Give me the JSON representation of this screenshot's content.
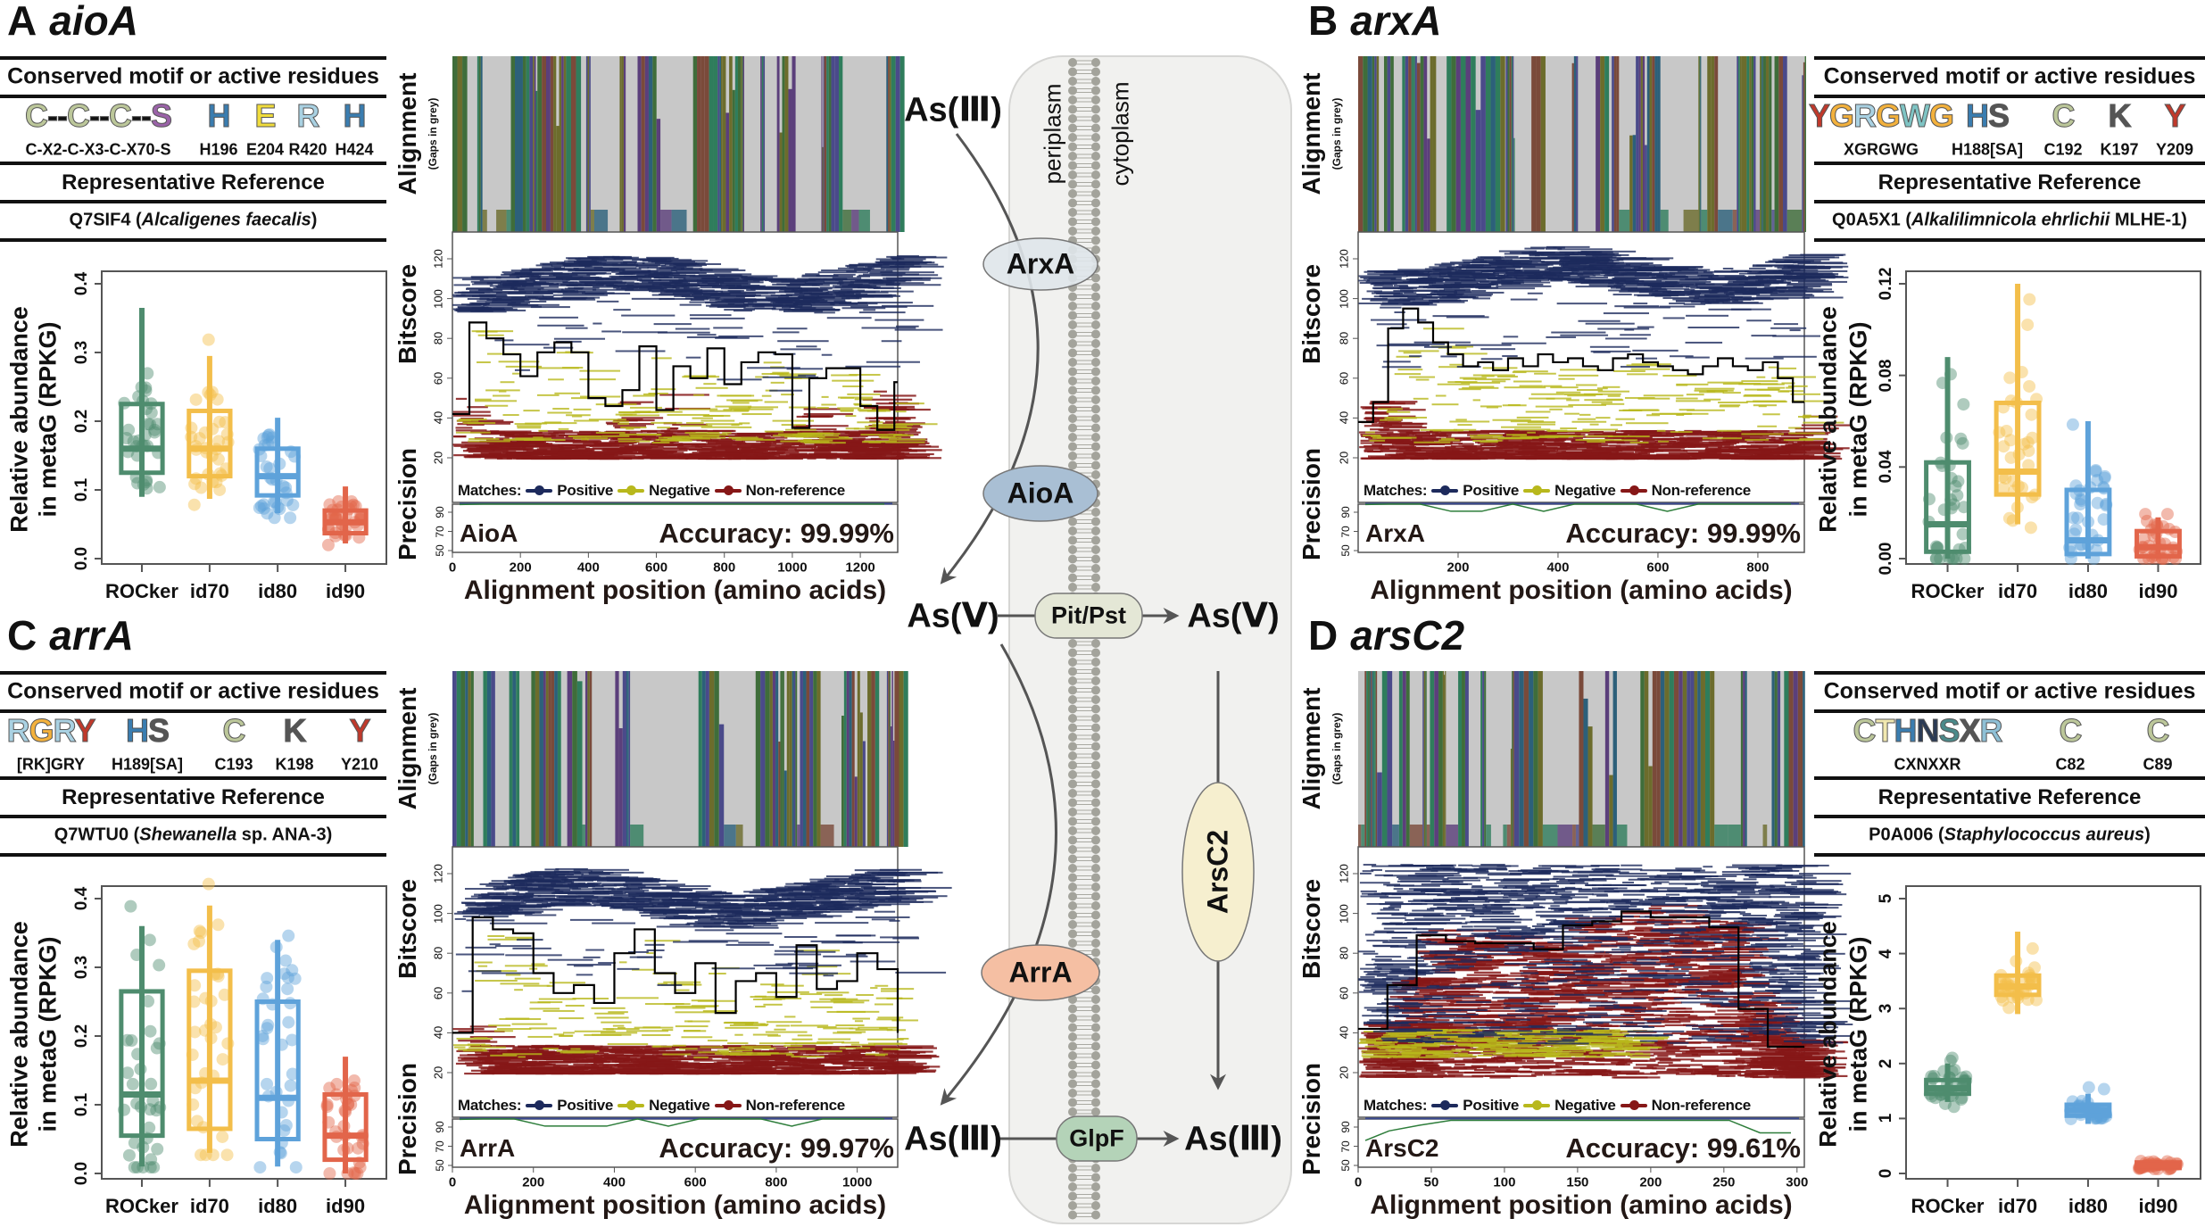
{
  "shared": {
    "motif_header": "Conserved motif or active residues",
    "ref_header": "Representative Reference",
    "alignment_label": "Alignment",
    "gaps_label": "(Gaps in grey)",
    "bitscore_label": "Bitscore",
    "precision_label": "Precision",
    "xaxis_label": "Alignment position (amino acids)",
    "legend": {
      "title": "Matches:",
      "positive": "Positive",
      "negative": "Negative",
      "non_reference": "Non-reference"
    },
    "abundance_label_1": "Relative abundance",
    "abundance_label_2": "in metaG (RPKG)",
    "categories": [
      "ROCker",
      "id70",
      "id80",
      "id90"
    ]
  },
  "colors": {
    "rocker": "#4e8c6e",
    "id70": "#f3be4a",
    "id80": "#5ea2da",
    "id90": "#e2654a",
    "positive": "#1d2a5c",
    "negative": "#b8b81c",
    "non_reference": "#861717",
    "gap": "#c8c8c8",
    "membrane_bg": "#f1f1ef"
  },
  "panels": [
    {
      "letter": "A",
      "gene": "aioA",
      "protein": "AioA",
      "accuracy": "Accuracy: 99.99%",
      "motifs": [
        {
          "logo": [
            [
              "C",
              "#bcc79a"
            ],
            [
              "--",
              "#111"
            ],
            [
              "C",
              "#bcc79a"
            ],
            [
              "--",
              "#111"
            ],
            [
              "C",
              "#bcc79a"
            ],
            [
              "--",
              "#111"
            ],
            [
              "S",
              "#9a63a8"
            ]
          ],
          "label": "C-X2-C-X3-C-X70-S"
        },
        {
          "logo": [
            [
              "H",
              "#3a7db0"
            ]
          ],
          "label": "H196"
        },
        {
          "logo": [
            [
              "E",
              "#f1dd3c"
            ]
          ],
          "label": "E204"
        },
        {
          "logo": [
            [
              "R",
              "#a9d1e2"
            ]
          ],
          "label": "R420"
        },
        {
          "logo": [
            [
              "H",
              "#3a7db0"
            ]
          ],
          "label": "H424"
        }
      ],
      "reference": {
        "id": "Q7SIF4 (",
        "organism": "Alcaligenes faecalis",
        "suffix": ")"
      }
    },
    {
      "letter": "B",
      "gene": "arxA",
      "protein": "ArxA",
      "accuracy": "Accuracy: 99.99%",
      "motifs": [
        {
          "logo": [
            [
              "Y",
              "#c0392b"
            ],
            [
              "G",
              "#f3b13c"
            ],
            [
              "R",
              "#a9d1e2"
            ],
            [
              "G",
              "#f3b13c"
            ],
            [
              "W",
              "#7fc4c4"
            ],
            [
              "G",
              "#f3b13c"
            ]
          ],
          "label": "XGRGWG"
        },
        {
          "logo": [
            [
              "H",
              "#3a7db0"
            ],
            [
              "S",
              "#555"
            ]
          ],
          "label": "H188[SA]"
        },
        {
          "logo": [
            [
              "C",
              "#bcc79a"
            ]
          ],
          "label": "C192"
        },
        {
          "logo": [
            [
              "K",
              "#555555"
            ]
          ],
          "label": "K197"
        },
        {
          "logo": [
            [
              "Y",
              "#c0392b"
            ]
          ],
          "label": "Y209"
        }
      ],
      "reference": {
        "id": "Q0A5X1 (",
        "organism": "Alkalilimnicola ehrlichii",
        "suffix": " MLHE-1)"
      }
    },
    {
      "letter": "C",
      "gene": "arrA",
      "protein": "ArrA",
      "accuracy": "Accuracy: 99.97%",
      "motifs": [
        {
          "logo": [
            [
              "R",
              "#a9d1e2"
            ],
            [
              "G",
              "#f3b13c"
            ],
            [
              "R",
              "#a9d1e2"
            ],
            [
              "Y",
              "#c0392b"
            ]
          ],
          "label": "[RK]GRY"
        },
        {
          "logo": [
            [
              "H",
              "#3a7db0"
            ],
            [
              "S",
              "#555"
            ]
          ],
          "label": "H189[SA]"
        },
        {
          "logo": [
            [
              "C",
              "#bcc79a"
            ]
          ],
          "label": "C193"
        },
        {
          "logo": [
            [
              "K",
              "#555555"
            ]
          ],
          "label": "K198"
        },
        {
          "logo": [
            [
              "Y",
              "#c0392b"
            ]
          ],
          "label": "Y210"
        }
      ],
      "reference": {
        "id": "Q7WTU0 (",
        "organism": "Shewanella",
        "suffix": " sp. ANA-3)"
      }
    },
    {
      "letter": "D",
      "gene": "arsC2",
      "protein": "ArsC2",
      "accuracy": "Accuracy: 99.61%",
      "motifs": [
        {
          "logo": [
            [
              "C",
              "#bcc79a"
            ],
            [
              "T",
              "#f1e8b0"
            ],
            [
              "H",
              "#3a7db0"
            ],
            [
              "N",
              "#2b3b55"
            ],
            [
              "S",
              "#4b8a8a"
            ],
            [
              "X",
              "#555"
            ],
            [
              "R",
              "#8fc0d6"
            ]
          ],
          "label": "CXNXXR"
        },
        {
          "logo": [
            [
              "C",
              "#bcc79a"
            ]
          ],
          "label": "C82"
        },
        {
          "logo": [
            [
              "C",
              "#bcc79a"
            ]
          ],
          "label": "C89"
        }
      ],
      "reference": {
        "id": "P0A006 (",
        "organism": "Staphylococcus aureus",
        "suffix": ")"
      }
    }
  ],
  "pathway": {
    "periplasm": "periplasm",
    "cytoplasm": "cytoplasm",
    "as3": "As(Ⅲ)",
    "as5": "As(Ⅴ)",
    "arxA": "ArxA",
    "aioA": "AioA",
    "pit_pst": "Pit/Pst",
    "arrA": "ArrA",
    "arsC2": "ArsC2",
    "glpF": "GlpF"
  },
  "chart_data": [
    {
      "type": "box",
      "panel": "A",
      "ylabel": "Relative abundance in metaG (RPKG)",
      "ylim": [
        0,
        0.4
      ],
      "yticks": [
        "0.0",
        "0.1",
        "0.2",
        "0.3",
        "0.4"
      ],
      "ytick_values": [
        0,
        0.1,
        0.2,
        0.3,
        0.4
      ],
      "categories": [
        "ROCker",
        "id70",
        "id80",
        "id90"
      ],
      "boxes": [
        {
          "low": 0.09,
          "q1": 0.125,
          "median": 0.16,
          "q3": 0.225,
          "high": 0.365
        },
        {
          "low": 0.087,
          "q1": 0.12,
          "median": 0.16,
          "q3": 0.215,
          "high": 0.295
        },
        {
          "low": 0.066,
          "q1": 0.092,
          "median": 0.12,
          "q3": 0.16,
          "high": 0.205
        },
        {
          "low": 0.022,
          "q1": 0.037,
          "median": 0.053,
          "q3": 0.07,
          "high": 0.105
        }
      ]
    },
    {
      "type": "box",
      "panel": "B",
      "ylabel": "Relative abundance in metaG (RPKG)",
      "ylim": [
        0,
        0.12
      ],
      "yticks": [
        "0.00",
        "0.04",
        "0.08",
        "0.12"
      ],
      "ytick_values": [
        0,
        0.04,
        0.08,
        0.12
      ],
      "categories": [
        "ROCker",
        "id70",
        "id80",
        "id90"
      ],
      "boxes": [
        {
          "low": 0.0,
          "q1": 0.003,
          "median": 0.015,
          "q3": 0.042,
          "high": 0.088
        },
        {
          "low": 0.015,
          "q1": 0.028,
          "median": 0.038,
          "q3": 0.068,
          "high": 0.12
        },
        {
          "low": 0.0,
          "q1": 0.002,
          "median": 0.008,
          "q3": 0.03,
          "high": 0.06
        },
        {
          "low": 0.0,
          "q1": 0.001,
          "median": 0.005,
          "q3": 0.012,
          "high": 0.018
        }
      ]
    },
    {
      "type": "box",
      "panel": "C",
      "ylabel": "Relative abundance in metaG (RPKG)",
      "ylim": [
        0,
        0.4
      ],
      "yticks": [
        "0.0",
        "0.1",
        "0.2",
        "0.3",
        "0.4"
      ],
      "ytick_values": [
        0,
        0.1,
        0.2,
        0.3,
        0.4
      ],
      "categories": [
        "ROCker",
        "id70",
        "id80",
        "id90"
      ],
      "boxes": [
        {
          "low": 0.01,
          "q1": 0.055,
          "median": 0.115,
          "q3": 0.265,
          "high": 0.36
        },
        {
          "low": 0.03,
          "q1": 0.065,
          "median": 0.135,
          "q3": 0.295,
          "high": 0.39
        },
        {
          "low": 0.01,
          "q1": 0.05,
          "median": 0.11,
          "q3": 0.25,
          "high": 0.34
        },
        {
          "low": 0.0,
          "q1": 0.02,
          "median": 0.055,
          "q3": 0.115,
          "high": 0.17
        }
      ]
    },
    {
      "type": "box",
      "panel": "D",
      "ylabel": "Relative abundance in metaG (RPKG)",
      "ylim": [
        0,
        5
      ],
      "yticks": [
        "0",
        "1",
        "2",
        "3",
        "4",
        "5"
      ],
      "ytick_values": [
        0,
        1,
        2,
        3,
        4,
        5
      ],
      "categories": [
        "ROCker",
        "id70",
        "id80",
        "id90"
      ],
      "boxes": [
        {
          "low": 1.3,
          "q1": 1.45,
          "median": 1.55,
          "q3": 1.7,
          "high": 2.0
        },
        {
          "low": 2.9,
          "q1": 3.25,
          "median": 3.4,
          "q3": 3.6,
          "high": 4.4
        },
        {
          "low": 0.9,
          "q1": 1.05,
          "median": 1.15,
          "q3": 1.25,
          "high": 1.45
        },
        {
          "low": 0.05,
          "q1": 0.1,
          "median": 0.15,
          "q3": 0.2,
          "high": 0.25
        }
      ]
    },
    {
      "type": "line",
      "panel": "A",
      "xlim": [
        0,
        1310
      ],
      "xticks": [
        0,
        200,
        400,
        600,
        800,
        1000,
        1200
      ],
      "bitscore_ticks": [
        20,
        40,
        60,
        80,
        100,
        120
      ],
      "precision_ticks": [
        50,
        70,
        90
      ],
      "threshold_step": 50,
      "threshold": [
        42,
        88,
        80,
        72,
        61,
        73,
        78,
        73,
        50,
        46,
        54,
        76,
        44,
        66,
        60,
        75,
        57,
        68,
        73,
        72,
        35,
        60,
        65,
        65,
        46,
        34,
        58
      ]
    },
    {
      "type": "line",
      "panel": "B",
      "xlim": [
        0,
        893
      ],
      "xticks": [
        200,
        400,
        600,
        800
      ],
      "bitscore_ticks": [
        20,
        40,
        60,
        80,
        100,
        120
      ],
      "precision_ticks": [
        50,
        70,
        90
      ],
      "threshold_step": 30,
      "threshold": [
        38,
        48,
        85,
        95,
        88,
        78,
        72,
        66,
        68,
        64,
        70,
        66,
        72,
        68,
        70,
        66,
        64,
        70,
        72,
        68,
        66,
        64,
        62,
        66,
        70,
        66,
        64,
        68,
        60,
        48
      ]
    },
    {
      "type": "line",
      "panel": "C",
      "xlim": [
        0,
        1100
      ],
      "xticks": [
        0,
        200,
        400,
        600,
        800,
        1000
      ],
      "bitscore_ticks": [
        20,
        40,
        60,
        80,
        100,
        120
      ],
      "precision_ticks": [
        50,
        70,
        90
      ],
      "threshold_step": 50,
      "threshold": [
        40,
        98,
        92,
        90,
        70,
        60,
        64,
        55,
        80,
        92,
        70,
        60,
        75,
        50,
        66,
        70,
        58,
        84,
        62,
        66,
        80,
        72,
        40
      ]
    },
    {
      "type": "line",
      "panel": "D",
      "xlim": [
        0,
        305
      ],
      "xticks": [
        0,
        50,
        100,
        150,
        200,
        250,
        300
      ],
      "bitscore_ticks": [
        20,
        40,
        60,
        80,
        100,
        120
      ],
      "precision_ticks": [
        50,
        70,
        90
      ],
      "threshold_step": 20,
      "threshold": [
        42,
        64,
        89,
        86,
        85,
        85,
        82,
        94,
        96,
        101,
        98,
        98,
        93,
        52,
        33,
        33
      ]
    }
  ]
}
